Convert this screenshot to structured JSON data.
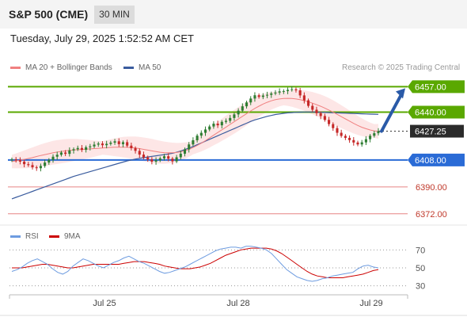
{
  "header": {
    "title": "S&P 500 (CME)",
    "timeframe": "30 MIN"
  },
  "timestamp": "Tuesday, July 29, 2025 1:52:52 AM CET",
  "legend": {
    "ma20_label": "MA 20 + Bollinger Bands",
    "ma50_label": "MA 50",
    "research": "Research © 2025 Trading Central",
    "rsi_label": "RSI",
    "rsi_ma_label": "9MA"
  },
  "colors": {
    "resistance": "#5aa800",
    "support": "#2a6bd6",
    "minor_level": "#e06666",
    "ma20": "#f08080",
    "ma50": "#3a5c9e",
    "candle_up": "#2e7d32",
    "candle_down": "#c62828",
    "rsi": "#6e9ce0",
    "rsi_ma": "#cc0000",
    "arrow": "#2a5aa8"
  },
  "chart_data": [
    {
      "type": "candlestick",
      "title": "S&P 500 (CME)",
      "timeframe": "30 MIN",
      "x_labels": [
        "Jul 25",
        "Jul 28",
        "Jul 29"
      ],
      "ylim": [
        6365,
        6462
      ],
      "levels": [
        {
          "label": "6457.00",
          "value": 6457.0,
          "kind": "resistance"
        },
        {
          "label": "6440.00",
          "value": 6440.0,
          "kind": "resistance"
        },
        {
          "label": "6427.25",
          "value": 6427.25,
          "kind": "last"
        },
        {
          "label": "6408.00",
          "value": 6408.0,
          "kind": "support"
        },
        {
          "label": "6390.00",
          "value": 6390.0,
          "kind": "minor"
        },
        {
          "label": "6372.00",
          "value": 6372.0,
          "kind": "minor"
        }
      ],
      "closes": [
        6408.4,
        6407.8,
        6406.9,
        6405.2,
        6404.6,
        6403.1,
        6402.5,
        6404.0,
        6406.3,
        6408.0,
        6410.2,
        6411.5,
        6413.0,
        6412.1,
        6414.4,
        6415.2,
        6416.0,
        6414.8,
        6416.5,
        6417.1,
        6418.3,
        6419.0,
        6417.9,
        6418.8,
        6419.6,
        6420.5,
        6418.6,
        6419.9,
        6417.6,
        6415.9,
        6414.1,
        6411.6,
        6409.7,
        6408.4,
        6406.9,
        6407.8,
        6409.1,
        6410.5,
        6408.9,
        6407.1,
        6409.8,
        6412.2,
        6415.1,
        6418.4,
        6421.2,
        6424.3,
        6426.2,
        6428.4,
        6430.4,
        6432.3,
        6431.2,
        6433.5,
        6434.2,
        6436.1,
        6438.5,
        6441.0,
        6443.9,
        6446.5,
        6449.1,
        6451.3,
        6450.2,
        6451.1,
        6451.6,
        6452.5,
        6453.1,
        6453.9,
        6454.1,
        6454.9,
        6455.3,
        6454.6,
        6451.2,
        6447.9,
        6444.2,
        6441.6,
        6439.3,
        6437.4,
        6434.8,
        6432.0,
        6429.3,
        6426.2,
        6424.1,
        6422.8,
        6421.3,
        6419.7,
        6418.4,
        6419.8,
        6421.9,
        6424.2,
        6425.9,
        6427.25
      ],
      "ma20": [
        6407.0,
        6407.4,
        6407.9,
        6408.4,
        6409.0,
        6409.6,
        6410.3,
        6411.0,
        6411.6,
        6412.2,
        6412.8,
        6413.3,
        6413.7,
        6414.1,
        6414.4,
        6414.7,
        6414.9,
        6415.0,
        6415.2,
        6415.4,
        6415.6,
        6415.8,
        6416.0,
        6416.2,
        6416.4,
        6416.5,
        6416.6,
        6416.6,
        6416.5,
        6416.3,
        6416.0,
        6415.6,
        6415.1,
        6414.6,
        6414.1,
        6413.6,
        6413.2,
        6412.9,
        6412.8,
        6412.8,
        6413.0,
        6413.5,
        6414.2,
        6415.1,
        6416.3,
        6417.7,
        6419.2,
        6420.9,
        6422.7,
        6424.6,
        6426.4,
        6428.2,
        6430.0,
        6431.8,
        6433.6,
        6435.4,
        6437.2,
        6439.0,
        6440.8,
        6442.5,
        6444.0,
        6445.4,
        6446.6,
        6447.6,
        6448.3,
        6448.8,
        6449.1,
        6449.2,
        6449.1,
        6448.8,
        6448.3,
        6447.7,
        6446.9,
        6446.0,
        6445.0,
        6443.9,
        6442.7,
        6441.4,
        6440.0,
        6438.5,
        6437.0,
        6435.5,
        6434.0,
        6432.5,
        6431.1,
        6429.9,
        6428.9,
        6428.1,
        6427.5,
        6427.1
      ],
      "ma50": [
        6382.0,
        6383.0,
        6384.0,
        6385.0,
        6386.0,
        6387.0,
        6388.0,
        6389.0,
        6390.0,
        6391.0,
        6392.0,
        6393.0,
        6394.0,
        6395.0,
        6396.0,
        6397.0,
        6397.8,
        6398.6,
        6399.4,
        6400.2,
        6401.0,
        6401.8,
        6402.6,
        6403.4,
        6404.2,
        6405.0,
        6405.8,
        6406.6,
        6407.4,
        6408.0,
        6408.6,
        6409.1,
        6409.6,
        6410.0,
        6410.4,
        6410.8,
        6411.2,
        6411.6,
        6412.0,
        6412.5,
        6413.2,
        6414.0,
        6415.0,
        6416.0,
        6417.0,
        6418.2,
        6419.4,
        6420.6,
        6421.8,
        6423.0,
        6424.2,
        6425.4,
        6426.6,
        6427.8,
        6429.0,
        6430.2,
        6431.4,
        6432.6,
        6433.8,
        6434.8,
        6435.6,
        6436.4,
        6437.2,
        6437.8,
        6438.4,
        6438.8,
        6439.2,
        6439.5,
        6439.7,
        6439.9,
        6440.0,
        6440.1,
        6440.1,
        6440.1,
        6440.0,
        6439.9,
        6439.8,
        6439.7,
        6439.6,
        6439.5,
        6439.4,
        6439.3,
        6439.2,
        6439.1,
        6439.0,
        6438.9,
        6438.8,
        6438.7,
        6438.6,
        6438.5
      ],
      "forecast_arrow": {
        "from": 6427.25,
        "to": 6457.0
      }
    },
    {
      "type": "line",
      "title": "RSI",
      "ylim": [
        20,
        80
      ],
      "yticks": [
        70,
        50,
        30
      ],
      "series": [
        {
          "name": "RSI",
          "values": [
            46,
            48,
            51,
            55,
            58,
            60,
            57,
            54,
            49,
            45,
            43,
            46,
            52,
            56,
            60,
            58,
            55,
            52,
            50,
            53,
            56,
            58,
            61,
            63,
            60,
            57,
            55,
            52,
            49,
            46,
            44,
            45,
            47,
            49,
            51,
            54,
            57,
            60,
            63,
            66,
            69,
            71,
            72,
            73,
            73,
            72,
            74,
            74,
            73,
            72,
            70,
            66,
            60,
            54,
            48,
            44,
            40,
            38,
            36,
            35,
            36,
            38,
            39,
            41,
            42,
            43,
            44,
            45,
            49,
            52,
            53,
            51,
            50
          ]
        },
        {
          "name": "9MA",
          "values": [
            50,
            50,
            50,
            51,
            52,
            53,
            54,
            54,
            53,
            52,
            51,
            50,
            50,
            51,
            52,
            53,
            54,
            54,
            54,
            54,
            54,
            54,
            55,
            56,
            57,
            57,
            57,
            56,
            55,
            54,
            52,
            51,
            50,
            49,
            49,
            49,
            50,
            51,
            53,
            55,
            58,
            61,
            64,
            66,
            68,
            70,
            71,
            72,
            72,
            72,
            72,
            71,
            69,
            66,
            62,
            58,
            54,
            50,
            46,
            43,
            41,
            40,
            39,
            39,
            39,
            39,
            40,
            41,
            42,
            43,
            45,
            47,
            48
          ]
        }
      ]
    }
  ]
}
